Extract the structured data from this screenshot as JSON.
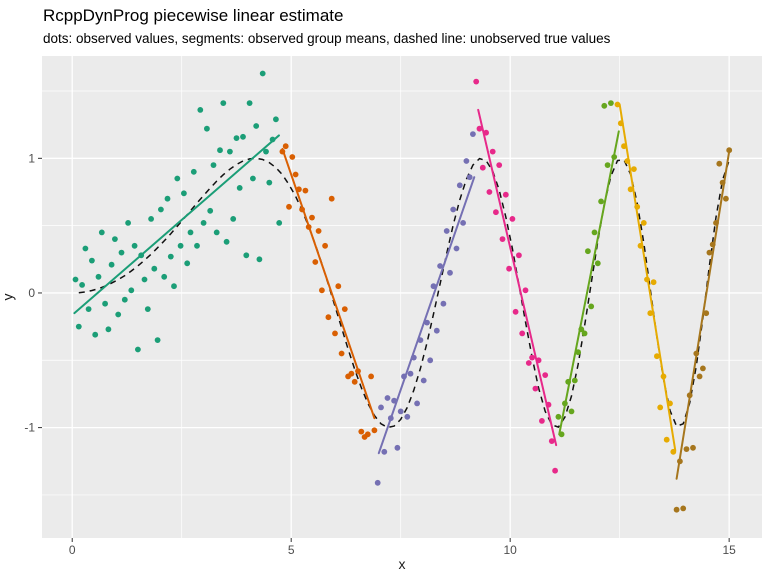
{
  "title": "RcppDynProg piecewise linear estimate",
  "subtitle": "dots: observed values, segments: observed group means, dashed line: unobserved true values",
  "axes": {
    "x_label": "x",
    "y_label": "y",
    "x_ticks": [
      {
        "v": 0,
        "label": "0"
      },
      {
        "v": 5,
        "label": "5"
      },
      {
        "v": 10,
        "label": "10"
      },
      {
        "v": 15,
        "label": "15"
      }
    ],
    "y_ticks": [
      {
        "v": -1,
        "label": "-1"
      },
      {
        "v": 0,
        "label": "0"
      },
      {
        "v": 1,
        "label": "1"
      }
    ],
    "x_minor": [
      2.5,
      7.5,
      12.5
    ],
    "y_minor": [
      -1.5,
      -0.5,
      0.5,
      1.5
    ],
    "xlim": [
      -0.69,
      15.75
    ],
    "ylim": [
      -1.82,
      1.76
    ]
  },
  "style": {
    "panel_bg": "#EBEBEB",
    "grid_major": "#FFFFFF",
    "grid_minor": "#FFFFFF",
    "tick_mark": "#333333",
    "tick_label": "#4D4D4D",
    "dashed_line": "#111111",
    "point_radius": 2.9
  },
  "chart_data": {
    "type": "scatter",
    "xlabel": "x",
    "ylabel": "y",
    "legend": "none",
    "grid": "on",
    "groups": [
      {
        "name": "segment-1",
        "color": "#1B9E77",
        "x": [
          0.075,
          0.15,
          0.225,
          0.3,
          0.375,
          0.45,
          0.525,
          0.6,
          0.675,
          0.75,
          0.825,
          0.9,
          0.975,
          1.05,
          1.125,
          1.2,
          1.275,
          1.35,
          1.425,
          1.5,
          1.575,
          1.65,
          1.725,
          1.8,
          1.875,
          1.95,
          2.025,
          2.1,
          2.175,
          2.25,
          2.325,
          2.4,
          2.475,
          2.55,
          2.625,
          2.7,
          2.775,
          2.85,
          2.925,
          3.0,
          3.075,
          3.15,
          3.225,
          3.3,
          3.375,
          3.45,
          3.525,
          3.6,
          3.675,
          3.75,
          3.825,
          3.9,
          3.975,
          4.05,
          4.125,
          4.2,
          4.275,
          4.35,
          4.425,
          4.5,
          4.575,
          4.65,
          4.725
        ],
        "y": [
          0.1,
          -0.25,
          0.06,
          0.33,
          -0.12,
          0.24,
          -0.31,
          0.12,
          0.45,
          -0.08,
          -0.27,
          0.21,
          0.4,
          -0.16,
          0.3,
          -0.05,
          0.52,
          0.02,
          0.35,
          -0.42,
          0.28,
          0.1,
          -0.12,
          0.55,
          0.18,
          -0.35,
          0.62,
          0.12,
          0.7,
          0.27,
          0.05,
          0.85,
          0.35,
          0.74,
          0.22,
          0.45,
          0.9,
          0.35,
          1.36,
          0.52,
          1.22,
          0.61,
          0.95,
          0.45,
          1.06,
          1.41,
          0.38,
          1.05,
          0.55,
          1.15,
          0.78,
          1.16,
          0.28,
          1.41,
          0.85,
          1.24,
          0.25,
          1.63,
          1.05,
          0.82,
          1.14,
          1.29,
          0.52
        ]
      },
      {
        "name": "segment-2",
        "color": "#D95F02",
        "x": [
          4.8,
          4.875,
          4.95,
          5.025,
          5.1,
          5.175,
          5.25,
          5.325,
          5.4,
          5.475,
          5.55,
          5.625,
          5.7,
          5.775,
          5.85,
          5.925,
          6.0,
          6.075,
          6.15,
          6.225,
          6.3,
          6.375,
          6.45,
          6.525,
          6.6,
          6.675,
          6.75,
          6.825,
          6.9
        ],
        "y": [
          1.05,
          1.09,
          0.64,
          1.01,
          0.88,
          0.77,
          0.62,
          0.76,
          0.49,
          0.56,
          0.23,
          0.46,
          0.02,
          0.35,
          -0.18,
          0.7,
          -0.3,
          0.05,
          -0.45,
          -0.12,
          -0.62,
          -0.6,
          -0.66,
          -0.58,
          -1.03,
          -1.07,
          -1.05,
          -0.62,
          -1.02
        ]
      },
      {
        "name": "segment-3",
        "color": "#7570B3",
        "x": [
          6.975,
          7.05,
          7.125,
          7.2,
          7.275,
          7.35,
          7.425,
          7.5,
          7.575,
          7.65,
          7.725,
          7.8,
          7.875,
          7.95,
          8.025,
          8.1,
          8.175,
          8.25,
          8.325,
          8.4,
          8.475,
          8.55,
          8.625,
          8.7,
          8.775,
          8.85,
          8.925,
          9.0,
          9.075,
          9.15
        ],
        "y": [
          -1.41,
          -0.85,
          -1.18,
          -0.78,
          -0.93,
          -0.8,
          -1.15,
          -0.88,
          -0.62,
          -0.92,
          -0.6,
          -0.48,
          -0.82,
          -0.35,
          -0.65,
          -0.22,
          -0.5,
          0.05,
          -0.28,
          0.2,
          -0.08,
          0.46,
          0.15,
          0.62,
          0.33,
          0.8,
          0.52,
          0.98,
          0.86,
          1.18
        ]
      },
      {
        "name": "segment-4",
        "color": "#E7298A",
        "x": [
          9.225,
          9.3,
          9.375,
          9.45,
          9.525,
          9.6,
          9.675,
          9.75,
          9.825,
          9.9,
          9.975,
          10.05,
          10.125,
          10.2,
          10.275,
          10.35,
          10.425,
          10.5,
          10.575,
          10.65,
          10.725,
          10.8,
          10.875,
          10.95,
          11.025
        ],
        "y": [
          1.57,
          1.22,
          0.93,
          1.19,
          0.75,
          1.05,
          0.6,
          0.95,
          0.4,
          0.73,
          0.18,
          0.55,
          -0.14,
          0.28,
          -0.3,
          0.02,
          -0.52,
          -0.48,
          -0.71,
          -0.5,
          -0.95,
          -0.61,
          -0.83,
          -1.1,
          -1.32
        ]
      },
      {
        "name": "segment-5",
        "color": "#66A61E",
        "x": [
          11.1,
          11.175,
          11.25,
          11.325,
          11.4,
          11.475,
          11.55,
          11.625,
          11.7,
          11.775,
          11.85,
          11.925,
          12.0,
          12.075,
          12.15,
          12.225,
          12.3,
          12.375
        ],
        "y": [
          -0.92,
          -1.05,
          -0.82,
          -0.66,
          -0.88,
          -0.65,
          -0.44,
          -0.27,
          -0.3,
          0.31,
          -0.1,
          0.45,
          0.22,
          0.68,
          1.39,
          0.95,
          1.41,
          1.01
        ]
      },
      {
        "name": "segment-6",
        "color": "#E6AB02",
        "x": [
          12.45,
          12.525,
          12.6,
          12.675,
          12.75,
          12.825,
          12.9,
          12.975,
          13.05,
          13.125,
          13.2,
          13.275,
          13.35,
          13.425,
          13.5,
          13.575,
          13.65,
          13.725
        ],
        "y": [
          1.4,
          1.26,
          1.09,
          0.98,
          0.77,
          0.92,
          0.64,
          0.35,
          0.52,
          0.1,
          -0.15,
          0.08,
          -0.47,
          -0.85,
          -0.62,
          -1.09,
          -0.82,
          -1.18
        ]
      },
      {
        "name": "segment-7",
        "color": "#A6761D",
        "x": [
          13.8,
          13.875,
          13.95,
          14.025,
          14.1,
          14.175,
          14.25,
          14.325,
          14.4,
          14.475,
          14.55,
          14.625,
          14.7,
          14.775,
          14.85,
          14.925,
          15.0
        ],
        "y": [
          -1.61,
          -1.25,
          -1.6,
          -1.16,
          -0.76,
          -1.15,
          -0.45,
          -0.62,
          -0.56,
          -0.15,
          0.3,
          0.36,
          0.52,
          0.96,
          0.82,
          0.7,
          1.06
        ]
      }
    ],
    "segments": [
      {
        "x1": 0.05,
        "y1": -0.15,
        "x2": 4.72,
        "y2": 1.17,
        "color": "#1B9E77"
      },
      {
        "x1": 4.8,
        "y1": 1.07,
        "x2": 6.9,
        "y2": -0.93,
        "color": "#D95F02"
      },
      {
        "x1": 7.0,
        "y1": -1.19,
        "x2": 9.18,
        "y2": 0.86,
        "color": "#7570B3"
      },
      {
        "x1": 9.27,
        "y1": 1.36,
        "x2": 11.05,
        "y2": -1.13,
        "color": "#E7298A"
      },
      {
        "x1": 11.12,
        "y1": -1.05,
        "x2": 12.48,
        "y2": 1.2,
        "color": "#66A61E"
      },
      {
        "x1": 12.5,
        "y1": 1.4,
        "x2": 13.77,
        "y2": -1.17,
        "color": "#E6AB02"
      },
      {
        "x1": 13.8,
        "y1": -1.38,
        "x2": 15.0,
        "y2": 1.05,
        "color": "#A6761D"
      }
    ],
    "true_curve": {
      "x_start": 0.15,
      "x_step": 0.15,
      "y": [
        0.002,
        0.008,
        0.018,
        0.032,
        0.051,
        0.073,
        0.099,
        0.129,
        0.163,
        0.201,
        0.243,
        0.288,
        0.336,
        0.387,
        0.44,
        0.496,
        0.552,
        0.61,
        0.668,
        0.724,
        0.779,
        0.831,
        0.878,
        0.919,
        0.954,
        0.98,
        0.996,
        1.0,
        0.991,
        0.968,
        0.931,
        0.878,
        0.805,
        0.718,
        0.614,
        0.494,
        0.361,
        0.216,
        0.062,
        -0.098,
        -0.259,
        -0.417,
        -0.567,
        -0.703,
        -0.819,
        -0.91,
        -0.972,
        -0.999,
        -0.989,
        -0.939,
        -0.85,
        -0.722,
        -0.561,
        -0.37,
        -0.157,
        0.067,
        0.293,
        0.505,
        0.692,
        0.845,
        0.95,
        0.998,
        0.983,
        0.905,
        0.764,
        0.565,
        0.329,
        0.061,
        -0.215,
        -0.477,
        -0.706,
        -0.879,
        -0.979,
        -0.996,
        -0.923,
        -0.765,
        -0.531,
        -0.244,
        0.072,
        0.384,
        0.659,
        0.867,
        0.983,
        0.989,
        0.881,
        0.668,
        0.372,
        0.026,
        -0.326,
        -0.64,
        -0.873,
        -0.99,
        -0.972,
        -0.817,
        -0.542,
        -0.186,
        0.202,
        0.563,
        0.84,
        0.986
      ]
    }
  }
}
